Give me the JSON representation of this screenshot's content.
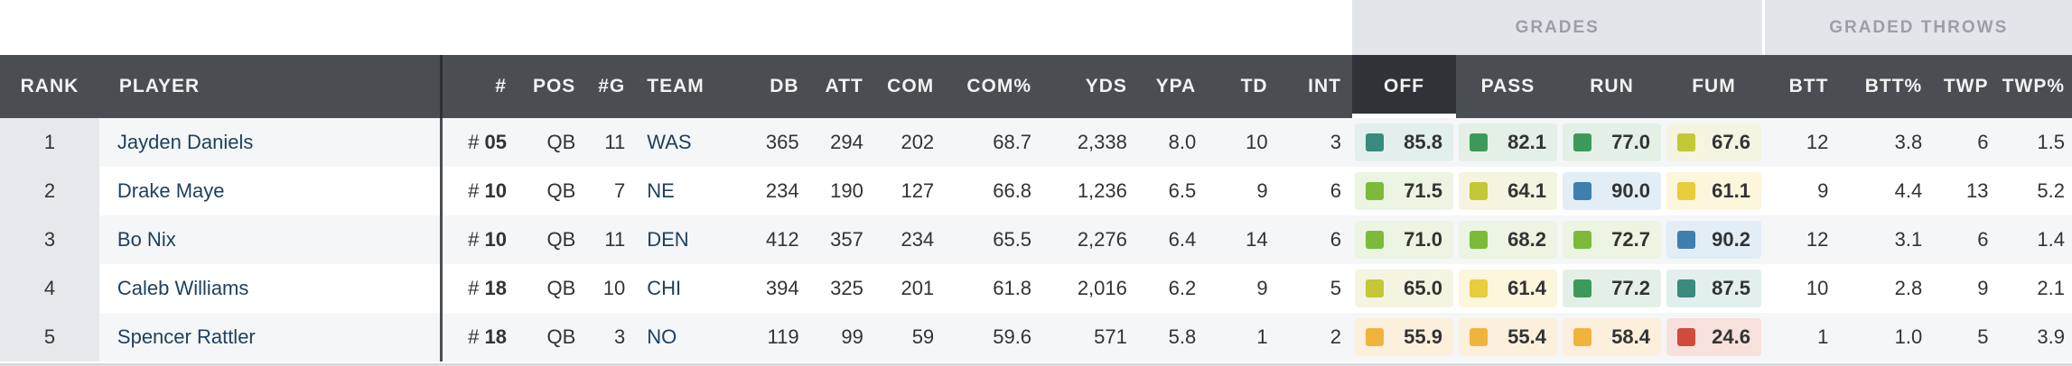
{
  "groups": {
    "grades": "GRADES",
    "graded_throws": "GRADED THROWS"
  },
  "headers": {
    "rank": "RANK",
    "player": "PLAYER",
    "num": "#",
    "pos": "POS",
    "g": "#G",
    "team": "TEAM",
    "db": "DB",
    "att": "ATT",
    "com": "COM",
    "comp": "COM%",
    "yds": "YDS",
    "ypa": "YPA",
    "td": "TD",
    "int": "INT",
    "off": "OFF",
    "pass": "PASS",
    "run": "RUN",
    "fum": "FUM",
    "btt": "BTT",
    "bttp": "BTT%",
    "twp": "TWP",
    "twpp": "TWP%"
  },
  "colors": {
    "elite": "#3a8a7e",
    "high": "#3d9a5a",
    "good": "#7cbb3a",
    "above": "#c3c837",
    "avg": "#e8cd3c",
    "below": "#f0b43c",
    "poor": "#d14b3b",
    "blue": "#3f7fb0",
    "elite_bg": "#e3efec",
    "high_bg": "#e4f0e6",
    "good_bg": "#ecf4e2",
    "above_bg": "#f4f4e0",
    "avg_bg": "#fcf6dc",
    "below_bg": "#fcf0dc",
    "poor_bg": "#f8e0dd",
    "blue_bg": "#e2edf5"
  },
  "rows": [
    {
      "rank": "1",
      "player": "Jayden Daniels",
      "hash": "#",
      "num": "05",
      "pos": "QB",
      "g": "11",
      "team": "WAS",
      "db": "365",
      "att": "294",
      "com": "202",
      "comp": "68.7",
      "yds": "2,338",
      "ypa": "8.0",
      "td": "10",
      "int": "3",
      "off": {
        "v": "85.8",
        "c": "elite"
      },
      "pass": {
        "v": "82.1",
        "c": "high"
      },
      "run": {
        "v": "77.0",
        "c": "high"
      },
      "fum": {
        "v": "67.6",
        "c": "above"
      },
      "btt": "12",
      "bttp": "3.8",
      "twp": "6",
      "twpp": "1.5"
    },
    {
      "rank": "2",
      "player": "Drake Maye",
      "hash": "#",
      "num": "10",
      "pos": "QB",
      "g": "7",
      "team": "NE",
      "db": "234",
      "att": "190",
      "com": "127",
      "comp": "66.8",
      "yds": "1,236",
      "ypa": "6.5",
      "td": "9",
      "int": "6",
      "off": {
        "v": "71.5",
        "c": "good"
      },
      "pass": {
        "v": "64.1",
        "c": "above"
      },
      "run": {
        "v": "90.0",
        "c": "blue"
      },
      "fum": {
        "v": "61.1",
        "c": "avg"
      },
      "btt": "9",
      "bttp": "4.4",
      "twp": "13",
      "twpp": "5.2"
    },
    {
      "rank": "3",
      "player": "Bo Nix",
      "hash": "#",
      "num": "10",
      "pos": "QB",
      "g": "11",
      "team": "DEN",
      "db": "412",
      "att": "357",
      "com": "234",
      "comp": "65.5",
      "yds": "2,276",
      "ypa": "6.4",
      "td": "14",
      "int": "6",
      "off": {
        "v": "71.0",
        "c": "good"
      },
      "pass": {
        "v": "68.2",
        "c": "good"
      },
      "run": {
        "v": "72.7",
        "c": "good"
      },
      "fum": {
        "v": "90.2",
        "c": "blue"
      },
      "btt": "12",
      "bttp": "3.1",
      "twp": "6",
      "twpp": "1.4"
    },
    {
      "rank": "4",
      "player": "Caleb Williams",
      "hash": "#",
      "num": "18",
      "pos": "QB",
      "g": "10",
      "team": "CHI",
      "db": "394",
      "att": "325",
      "com": "201",
      "comp": "61.8",
      "yds": "2,016",
      "ypa": "6.2",
      "td": "9",
      "int": "5",
      "off": {
        "v": "65.0",
        "c": "above"
      },
      "pass": {
        "v": "61.4",
        "c": "avg"
      },
      "run": {
        "v": "77.2",
        "c": "high"
      },
      "fum": {
        "v": "87.5",
        "c": "elite"
      },
      "btt": "10",
      "bttp": "2.8",
      "twp": "9",
      "twpp": "2.1"
    },
    {
      "rank": "5",
      "player": "Spencer Rattler",
      "hash": "#",
      "num": "18",
      "pos": "QB",
      "g": "3",
      "team": "NO",
      "db": "119",
      "att": "99",
      "com": "59",
      "comp": "59.6",
      "yds": "571",
      "ypa": "5.8",
      "td": "1",
      "int": "2",
      "off": {
        "v": "55.9",
        "c": "below"
      },
      "pass": {
        "v": "55.4",
        "c": "below"
      },
      "run": {
        "v": "58.4",
        "c": "below"
      },
      "fum": {
        "v": "24.6",
        "c": "poor"
      },
      "btt": "1",
      "bttp": "1.0",
      "twp": "5",
      "twpp": "3.9"
    }
  ]
}
